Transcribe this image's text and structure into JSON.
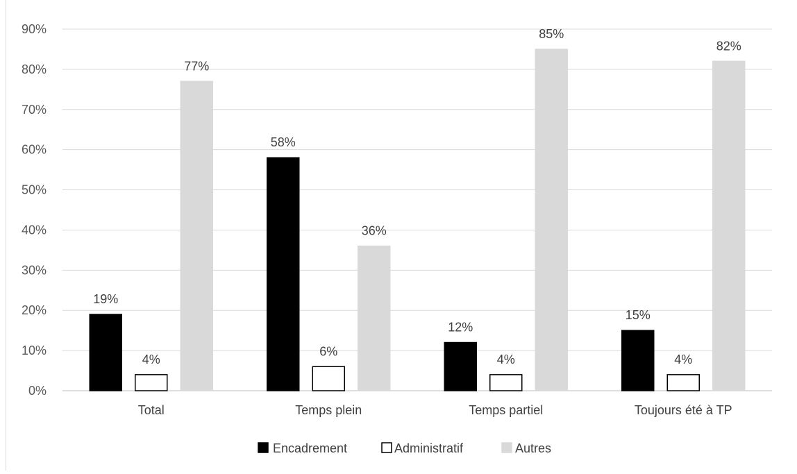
{
  "chart_data": {
    "type": "bar",
    "categories": [
      "Total",
      "Temps plein",
      "Temps partiel",
      "Toujours été à TP"
    ],
    "series": [
      {
        "name": "Encadrement",
        "values": [
          19,
          58,
          12,
          15
        ],
        "color": "#000000",
        "border": "#000000"
      },
      {
        "name": "Administratif",
        "values": [
          4,
          6,
          4,
          4
        ],
        "color": "#ffffff",
        "border": "#000000"
      },
      {
        "name": "Autres",
        "values": [
          77,
          36,
          85,
          82
        ],
        "color": "#d9d9d9",
        "border": "#d9d9d9"
      }
    ],
    "data_label_suffix": "%",
    "ylim": [
      0,
      90
    ],
    "yticks": [
      "0%",
      "10%",
      "20%",
      "30%",
      "40%",
      "50%",
      "60%",
      "70%",
      "80%",
      "90%"
    ],
    "ytick_values": [
      0,
      10,
      20,
      30,
      40,
      50,
      60,
      70,
      80,
      90
    ],
    "grid": true,
    "legend_position": "bottom",
    "title": "",
    "xlabel": "",
    "ylabel": ""
  }
}
